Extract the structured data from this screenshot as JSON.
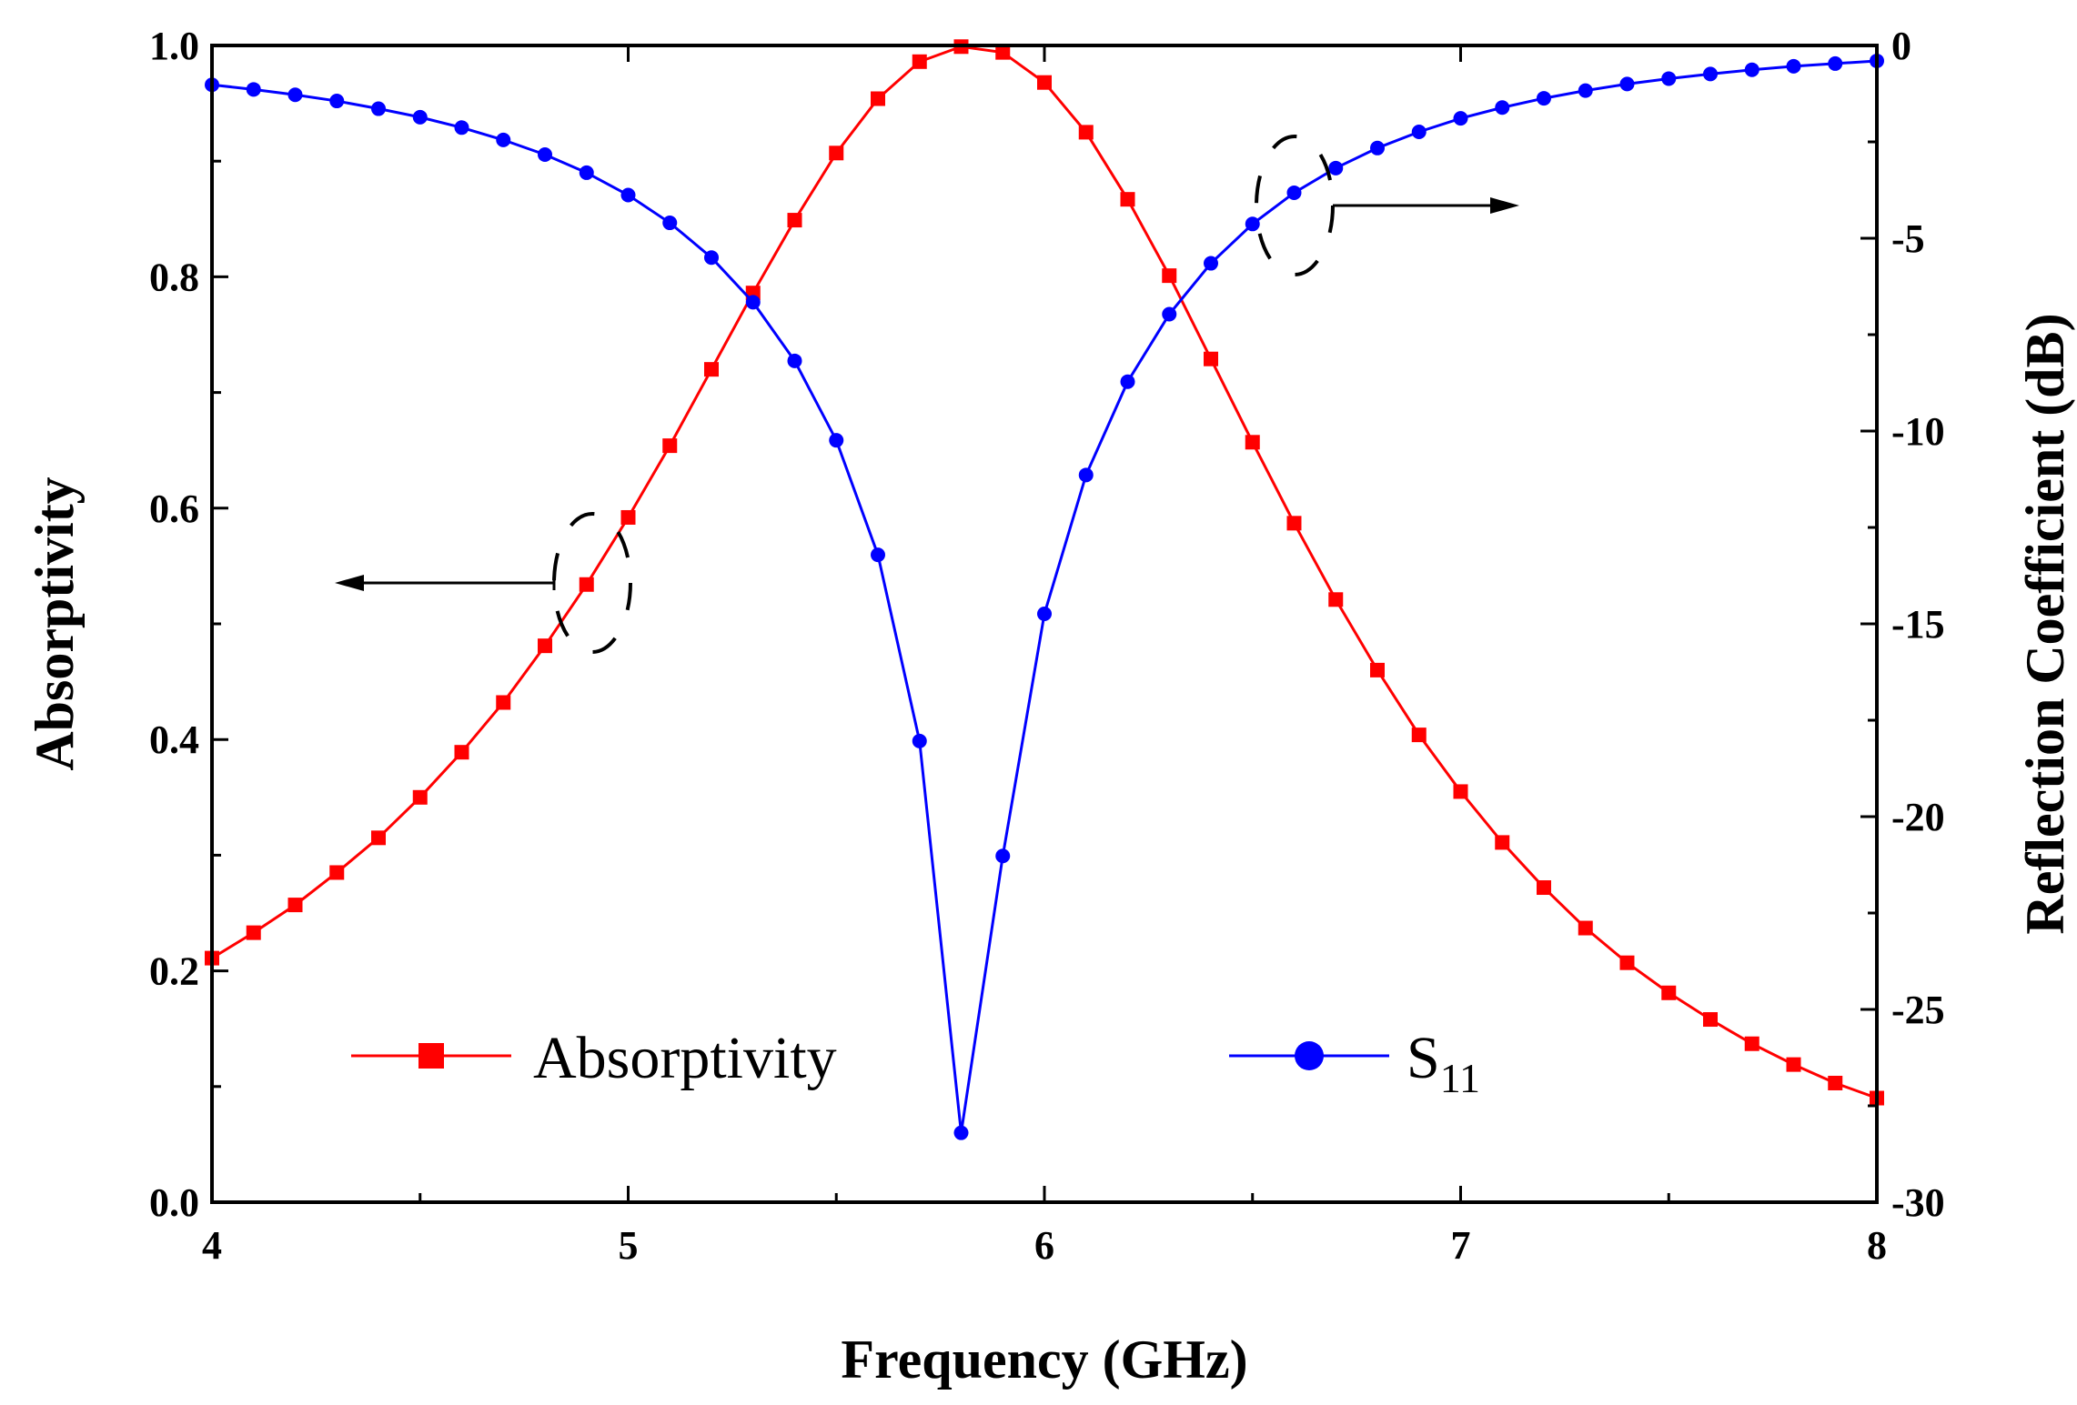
{
  "chart_data": {
    "type": "line",
    "title": "",
    "xlabel": "Frequency (GHz)",
    "ylabel": "Absorptivity",
    "y2label": "Reflection Coefficient (dB)",
    "xlim": [
      4,
      8
    ],
    "ylim": [
      0,
      1.0
    ],
    "y2lim": [
      -30,
      0
    ],
    "xticks": [
      "4",
      "5",
      "6",
      "7",
      "8"
    ],
    "yticks": [
      "0.0",
      "0.2",
      "0.4",
      "0.6",
      "0.8",
      "1.0"
    ],
    "y2ticks": [
      "-30",
      "-25",
      "-20",
      "-15",
      "-10",
      "-5",
      "0"
    ],
    "grid": false,
    "legend_placement": "bottom",
    "x": [
      4.0,
      4.1,
      4.2,
      4.3,
      4.4,
      4.5,
      4.6,
      4.7,
      4.8,
      4.9,
      5.0,
      5.1,
      5.2,
      5.3,
      5.4,
      5.5,
      5.6,
      5.7,
      5.8,
      5.9,
      6.0,
      6.1,
      6.2,
      6.3,
      6.4,
      6.5,
      6.6,
      6.7,
      6.8,
      6.9,
      7.0,
      7.1,
      7.2,
      7.3,
      7.4,
      7.5,
      7.6,
      7.7,
      7.8,
      7.9,
      8.0
    ],
    "series": [
      {
        "name": "Absorptivity",
        "axis": "left",
        "color": "#ff0000",
        "marker": "square",
        "values": [
          0.211,
          0.233,
          0.257,
          0.285,
          0.315,
          0.35,
          0.389,
          0.432,
          0.481,
          0.534,
          0.592,
          0.654,
          0.72,
          0.786,
          0.849,
          0.907,
          0.954,
          0.986,
          0.999,
          0.994,
          0.968,
          0.925,
          0.867,
          0.801,
          0.729,
          0.657,
          0.587,
          0.521,
          0.46,
          0.404,
          0.355,
          0.311,
          0.272,
          0.237,
          0.207,
          0.181,
          0.158,
          0.137,
          0.119,
          0.103,
          0.09
        ]
      },
      {
        "name": "S11",
        "name_main": "S",
        "name_sub": "11",
        "axis": "right",
        "color": "#0000ff",
        "marker": "circle",
        "values": [
          -1.02,
          -1.14,
          -1.28,
          -1.44,
          -1.64,
          -1.86,
          -2.13,
          -2.45,
          -2.83,
          -3.3,
          -3.88,
          -4.6,
          -5.5,
          -6.66,
          -8.18,
          -10.24,
          -13.21,
          -18.04,
          -28.2,
          -21.02,
          -14.74,
          -11.14,
          -8.72,
          -6.97,
          -5.65,
          -4.63,
          -3.82,
          -3.18,
          -2.66,
          -2.24,
          -1.89,
          -1.61,
          -1.37,
          -1.17,
          -1.0,
          -0.86,
          -0.74,
          -0.63,
          -0.54,
          -0.47,
          -0.4
        ]
      }
    ],
    "annotations": [
      {
        "type": "arrow",
        "series": "Absorptivity",
        "direction": "left"
      },
      {
        "type": "arrow",
        "series": "S11",
        "direction": "right"
      }
    ]
  }
}
